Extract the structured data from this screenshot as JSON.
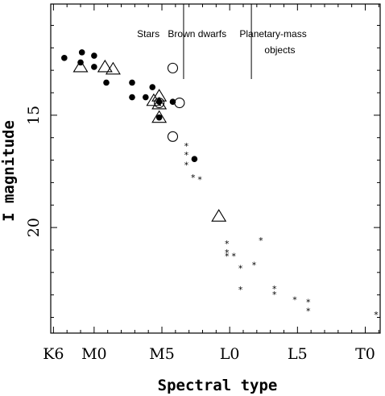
{
  "chart_data": {
    "type": "scatter",
    "title": "",
    "xlabel": "Spectral type",
    "ylabel": "I magnitude",
    "x_ticks": [
      {
        "value": 0,
        "label": "K6"
      },
      {
        "value": 3,
        "label": "M0"
      },
      {
        "value": 8,
        "label": "M5"
      },
      {
        "value": 13,
        "label": "L0"
      },
      {
        "value": 18,
        "label": "L5"
      },
      {
        "value": 23,
        "label": "T0"
      }
    ],
    "y_ticks": [
      {
        "value": 15,
        "label": "15"
      },
      {
        "value": 20,
        "label": "20"
      }
    ],
    "xlim": [
      -0.2,
      24.1
    ],
    "ylim": [
      24.7,
      10.05
    ],
    "y_inverted": true,
    "grid": false,
    "regions": [
      {
        "label": "Stars",
        "x": 7
      },
      {
        "label": "Brown dwarfs",
        "x": 10.6,
        "divider": 9.6
      },
      {
        "label": "Planetary-mass",
        "x": 16.2,
        "divider": 14.6
      },
      {
        "label": "objects",
        "x": 16.7
      }
    ],
    "series": [
      {
        "marker": "filled-circle",
        "points": [
          [
            0.8,
            12.45
          ],
          [
            2.1,
            12.2
          ],
          [
            3.0,
            12.35
          ],
          [
            2.0,
            12.65
          ],
          [
            3.0,
            12.85
          ],
          [
            3.9,
            13.55
          ],
          [
            5.8,
            13.55
          ],
          [
            7.3,
            13.75
          ],
          [
            5.8,
            14.2
          ],
          [
            6.8,
            14.2
          ],
          [
            7.8,
            14.4
          ],
          [
            8.8,
            14.4
          ],
          [
            7.8,
            15.1
          ],
          [
            10.4,
            16.95
          ]
        ]
      },
      {
        "marker": "open-triangle",
        "points": [
          [
            2.0,
            12.85
          ],
          [
            3.8,
            12.85
          ],
          [
            4.4,
            12.95
          ],
          [
            7.4,
            14.35
          ],
          [
            7.8,
            14.5
          ],
          [
            7.8,
            14.15
          ],
          [
            7.8,
            15.1
          ],
          [
            12.2,
            19.5
          ]
        ]
      },
      {
        "marker": "open-circle",
        "points": [
          [
            8.8,
            12.9
          ],
          [
            7.8,
            14.45
          ],
          [
            9.3,
            14.45
          ],
          [
            8.8,
            15.95
          ]
        ]
      },
      {
        "marker": "asterisk",
        "points": [
          [
            9.8,
            16.35
          ],
          [
            9.8,
            16.75
          ],
          [
            9.8,
            17.2
          ],
          [
            10.3,
            17.75
          ],
          [
            10.8,
            17.85
          ],
          [
            12.8,
            20.7
          ],
          [
            12.8,
            21.1
          ],
          [
            12.8,
            21.25
          ],
          [
            13.3,
            21.25
          ],
          [
            13.8,
            21.8
          ],
          [
            14.8,
            21.65
          ],
          [
            15.3,
            20.55
          ],
          [
            13.8,
            22.75
          ],
          [
            16.3,
            22.7
          ],
          [
            16.3,
            22.95
          ],
          [
            17.8,
            23.2
          ],
          [
            18.8,
            23.3
          ],
          [
            18.8,
            23.7
          ],
          [
            23.8,
            23.85
          ]
        ]
      }
    ]
  }
}
